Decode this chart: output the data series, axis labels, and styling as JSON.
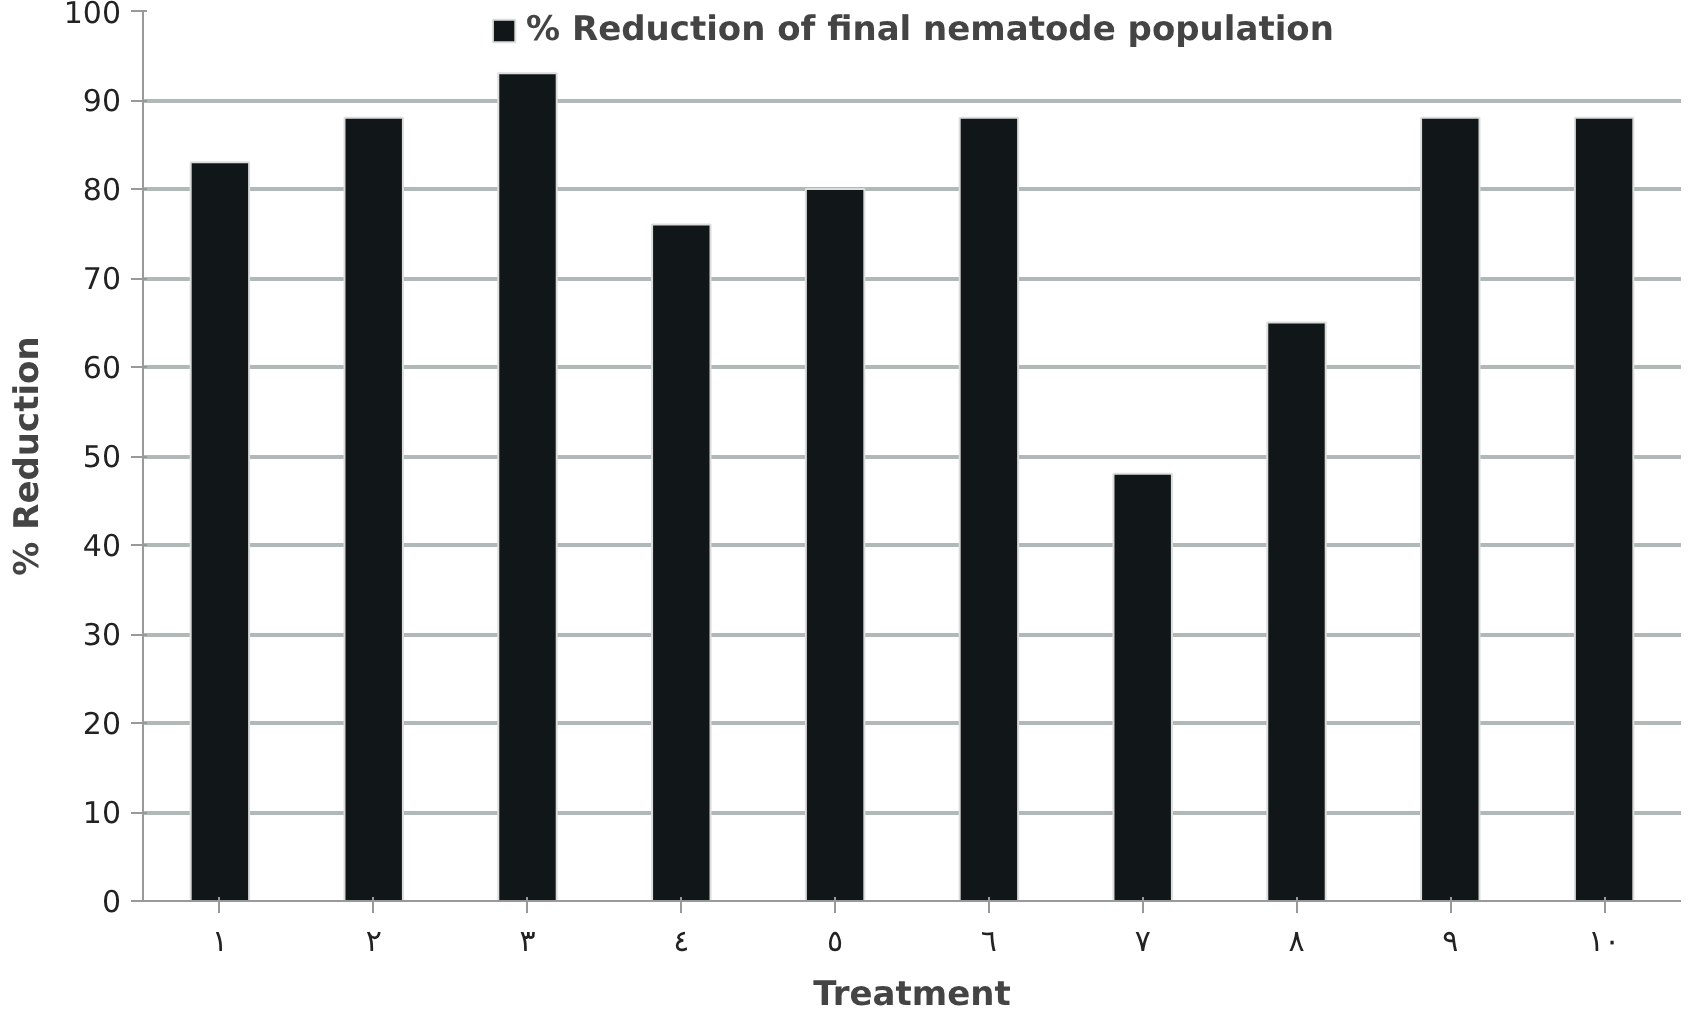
{
  "chart_data": {
    "type": "bar",
    "xlabel": "Treatment",
    "ylabel": "% Reduction",
    "categories": [
      "١",
      "٢",
      "٣",
      "٤",
      "٥",
      "٦",
      "٧",
      "٨",
      "٩",
      "١٠"
    ],
    "series": [
      {
        "name": "% Reduction of final nematode population",
        "color": "#111718",
        "values": [
          83,
          88,
          93,
          76,
          80,
          88,
          48,
          65,
          88,
          88
        ]
      }
    ],
    "ylim": [
      0,
      100
    ],
    "yticks": [
      0,
      10,
      20,
      30,
      40,
      50,
      60,
      70,
      80,
      90,
      100
    ],
    "grid": "y",
    "legend": "top"
  }
}
